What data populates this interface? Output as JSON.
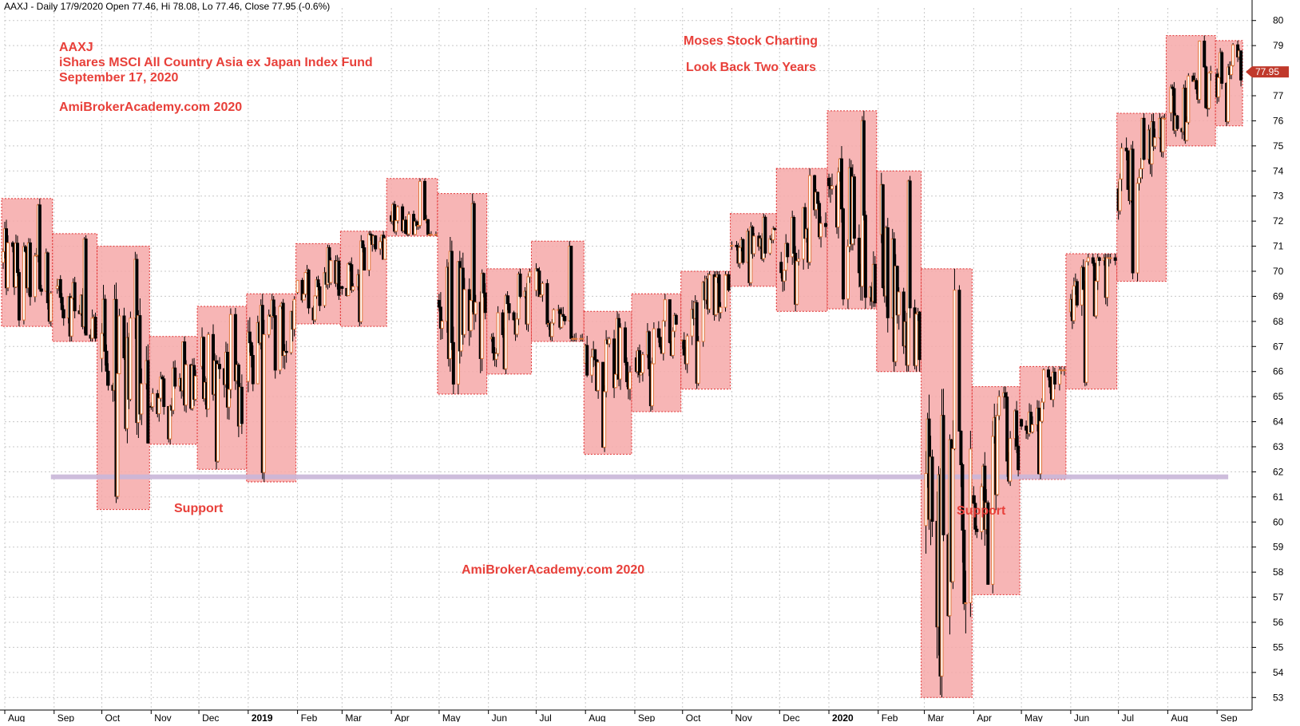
{
  "header": {
    "text": "AAXJ - Daily 17/9/2020 Open 77.46, Hi 78.08, Lo 77.46, Close 77.95 (-0.6%)"
  },
  "annotations": {
    "ticker": "AAXJ",
    "fund_name": "iShares MSCI All Country Asia ex Japan Index Fund",
    "date": "September 17, 2020",
    "site_top": "AmiBrokerAcademy.com 2020",
    "brand": "Moses Stock Charting",
    "lookback": "Look Back Two Years",
    "support_left": "Support",
    "support_right": "Support",
    "site_bottom": "AmiBrokerAcademy.com  2020"
  },
  "price_badge": "77.95",
  "colors": {
    "bull": "#e0773a",
    "bear": "#000000",
    "box_fill": "#f6a8a8",
    "box_border": "#e03030",
    "support_line": "#c9b6d8",
    "annotation": "#e8403a",
    "badge": "#c0392b"
  },
  "chart_data": {
    "type": "candlestick",
    "title": "AAXJ - Daily",
    "ylim": [
      52.5,
      80.5
    ],
    "y_ticks": [
      53,
      54,
      55,
      56,
      57,
      58,
      59,
      60,
      61,
      62,
      63,
      64,
      65,
      66,
      67,
      68,
      69,
      70,
      71,
      72,
      73,
      74,
      75,
      76,
      77,
      78,
      79,
      80
    ],
    "x_range": [
      "2018-08-01",
      "2020-09-23"
    ],
    "x_ticks": [
      {
        "label": "Aug",
        "date": "2018-08-01"
      },
      {
        "label": "Sep",
        "date": "2018-09-01"
      },
      {
        "label": "Oct",
        "date": "2018-10-01"
      },
      {
        "label": "Nov",
        "date": "2018-11-01"
      },
      {
        "label": "Dec",
        "date": "2018-12-01"
      },
      {
        "label": "2019",
        "date": "2019-01-01",
        "bold": true
      },
      {
        "label": "Feb",
        "date": "2019-02-01"
      },
      {
        "label": "Mar",
        "date": "2019-03-01"
      },
      {
        "label": "Apr",
        "date": "2019-04-01"
      },
      {
        "label": "May",
        "date": "2019-05-01"
      },
      {
        "label": "Jun",
        "date": "2019-06-01"
      },
      {
        "label": "Jul",
        "date": "2019-07-01"
      },
      {
        "label": "Aug",
        "date": "2019-08-01"
      },
      {
        "label": "Sep",
        "date": "2019-09-01"
      },
      {
        "label": "Oct",
        "date": "2019-10-01"
      },
      {
        "label": "Nov",
        "date": "2019-11-01"
      },
      {
        "label": "Dec",
        "date": "2019-12-01"
      },
      {
        "label": "2020",
        "date": "2020-01-01",
        "bold": true
      },
      {
        "label": "Feb",
        "date": "2020-02-01"
      },
      {
        "label": "Mar",
        "date": "2020-03-01"
      },
      {
        "label": "Apr",
        "date": "2020-04-01"
      },
      {
        "label": "May",
        "date": "2020-05-01"
      },
      {
        "label": "Jun",
        "date": "2020-06-01"
      },
      {
        "label": "Jul",
        "date": "2020-07-01"
      },
      {
        "label": "Aug",
        "date": "2020-08-01"
      },
      {
        "label": "Sep",
        "date": "2020-09-01"
      }
    ],
    "monthly_ranges": [
      {
        "start": "2018-07-30",
        "end": "2018-08-31",
        "low": 67.8,
        "high": 72.9
      },
      {
        "start": "2018-08-31",
        "end": "2018-09-28",
        "low": 67.2,
        "high": 71.5
      },
      {
        "start": "2018-09-28",
        "end": "2018-10-31",
        "low": 60.5,
        "high": 71.0
      },
      {
        "start": "2018-10-31",
        "end": "2018-11-30",
        "low": 63.1,
        "high": 67.4
      },
      {
        "start": "2018-11-30",
        "end": "2018-12-31",
        "low": 62.1,
        "high": 68.6
      },
      {
        "start": "2018-12-31",
        "end": "2019-01-31",
        "low": 61.6,
        "high": 69.1
      },
      {
        "start": "2019-01-31",
        "end": "2019-02-28",
        "low": 67.9,
        "high": 71.1
      },
      {
        "start": "2019-02-28",
        "end": "2019-03-29",
        "low": 67.8,
        "high": 71.6
      },
      {
        "start": "2019-03-29",
        "end": "2019-04-30",
        "low": 71.4,
        "high": 73.7
      },
      {
        "start": "2019-04-30",
        "end": "2019-05-31",
        "low": 65.1,
        "high": 73.1
      },
      {
        "start": "2019-05-31",
        "end": "2019-06-28",
        "low": 65.9,
        "high": 70.1
      },
      {
        "start": "2019-06-28",
        "end": "2019-07-31",
        "low": 67.2,
        "high": 71.2
      },
      {
        "start": "2019-07-31",
        "end": "2019-08-30",
        "low": 62.7,
        "high": 68.4
      },
      {
        "start": "2019-08-30",
        "end": "2019-09-30",
        "low": 64.4,
        "high": 69.1
      },
      {
        "start": "2019-09-30",
        "end": "2019-10-31",
        "low": 65.3,
        "high": 70.0
      },
      {
        "start": "2019-10-31",
        "end": "2019-11-29",
        "low": 69.4,
        "high": 72.3
      },
      {
        "start": "2019-11-29",
        "end": "2019-12-31",
        "low": 68.4,
        "high": 74.1
      },
      {
        "start": "2019-12-31",
        "end": "2020-01-31",
        "low": 68.5,
        "high": 76.4
      },
      {
        "start": "2020-01-31",
        "end": "2020-02-28",
        "low": 66.0,
        "high": 74.0
      },
      {
        "start": "2020-02-28",
        "end": "2020-03-31",
        "low": 53.0,
        "high": 70.1
      },
      {
        "start": "2020-03-31",
        "end": "2020-04-30",
        "low": 57.1,
        "high": 65.4
      },
      {
        "start": "2020-04-30",
        "end": "2020-05-29",
        "low": 61.7,
        "high": 66.2
      },
      {
        "start": "2020-05-29",
        "end": "2020-06-30",
        "low": 65.3,
        "high": 70.7
      },
      {
        "start": "2020-06-30",
        "end": "2020-07-31",
        "low": 69.6,
        "high": 76.3
      },
      {
        "start": "2020-07-31",
        "end": "2020-08-31",
        "low": 75.0,
        "high": 79.4
      },
      {
        "start": "2020-08-31",
        "end": "2020-09-17",
        "low": 75.8,
        "high": 79.2
      }
    ],
    "support_level": 61.8,
    "support_range": [
      "2018-08-30",
      "2020-09-08"
    ],
    "last_close": 77.95,
    "last_day": {
      "date": "2020-09-17",
      "open": 77.46,
      "high": 78.08,
      "low": 77.46,
      "close": 77.95
    }
  }
}
